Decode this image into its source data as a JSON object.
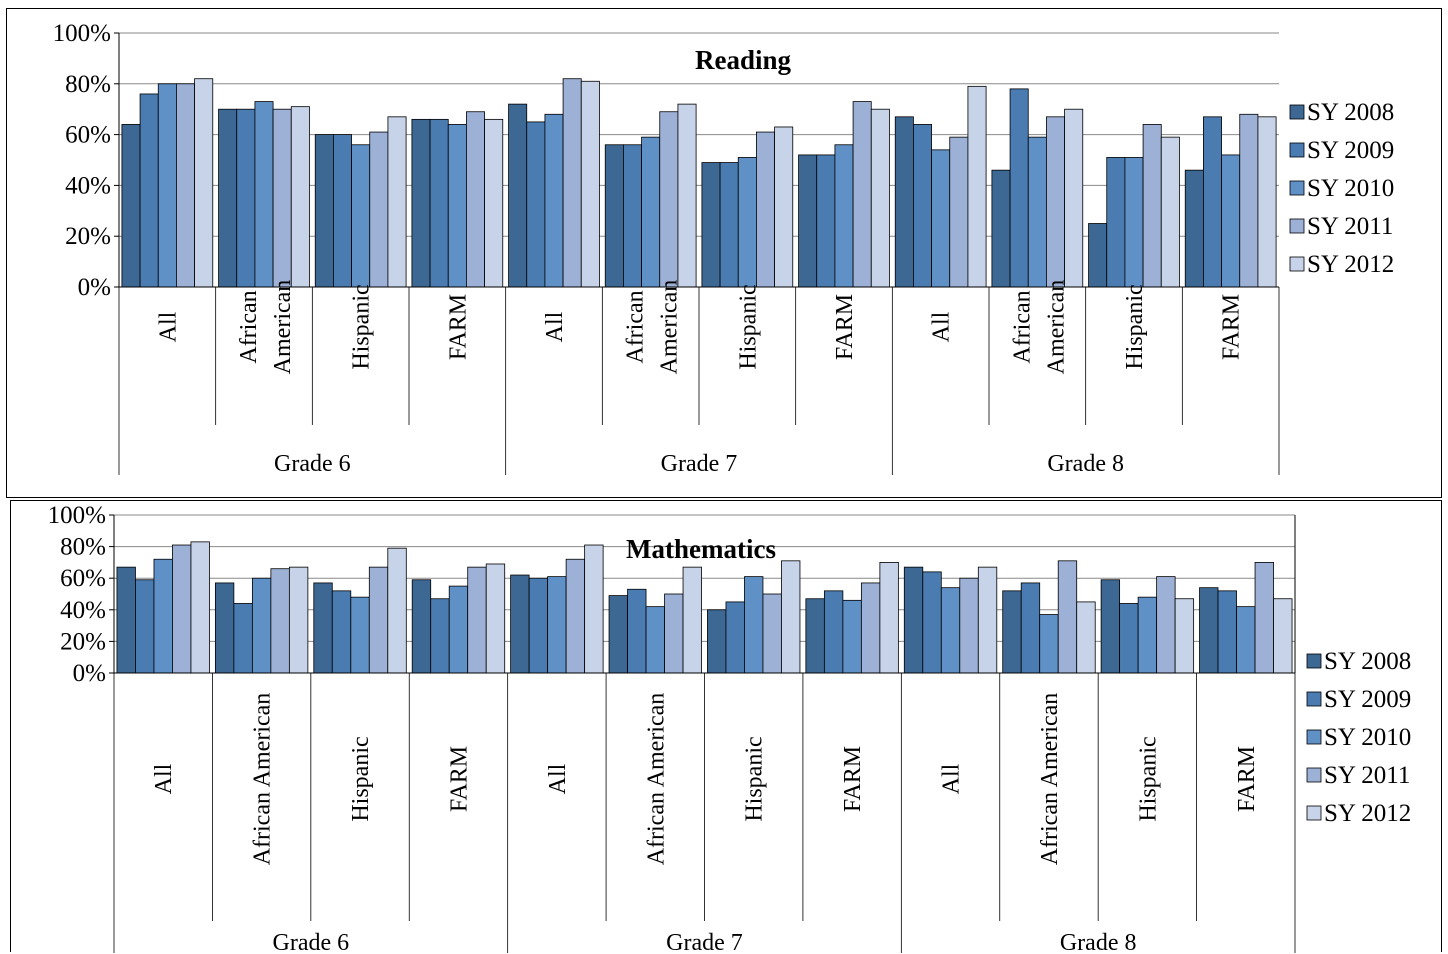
{
  "chart_data": [
    {
      "type": "bar",
      "title": "Reading",
      "ylim": [
        0,
        100
      ],
      "yticks": [
        "0%",
        "20%",
        "40%",
        "60%",
        "80%",
        "100%"
      ],
      "grid": true,
      "legend_position": "right",
      "groups": [
        {
          "label": "Grade 6",
          "categories": [
            "All",
            "African American",
            "Hispanic",
            "FARM"
          ]
        },
        {
          "label": "Grade 7",
          "categories": [
            "All",
            "African American",
            "Hispanic",
            "FARM"
          ]
        },
        {
          "label": "Grade 8",
          "categories": [
            "All",
            "African American",
            "Hispanic",
            "FARM"
          ]
        }
      ],
      "category_lines": [
        [
          "All"
        ],
        [
          "African",
          "American"
        ],
        [
          "Hispanic"
        ],
        [
          "FARM"
        ]
      ],
      "series": [
        {
          "name": "SY 2008",
          "color": "#3d6894",
          "values": [
            64,
            70,
            60,
            66,
            72,
            56,
            49,
            52,
            67,
            46,
            25,
            46
          ]
        },
        {
          "name": "SY 2009",
          "color": "#4a7cb2",
          "values": [
            76,
            70,
            60,
            66,
            65,
            56,
            49,
            52,
            64,
            78,
            51,
            67
          ]
        },
        {
          "name": "SY 2010",
          "color": "#5f90c6",
          "values": [
            80,
            73,
            56,
            64,
            68,
            59,
            51,
            56,
            54,
            59,
            51,
            52
          ]
        },
        {
          "name": "SY 2011",
          "color": "#9db0d6",
          "values": [
            80,
            70,
            61,
            69,
            82,
            69,
            61,
            73,
            59,
            67,
            64,
            68
          ]
        },
        {
          "name": "SY 2012",
          "color": "#c7d3e8",
          "values": [
            82,
            71,
            67,
            66,
            81,
            72,
            63,
            70,
            79,
            70,
            59,
            67
          ]
        }
      ]
    },
    {
      "type": "bar",
      "title": "Mathematics",
      "ylim": [
        0,
        100
      ],
      "yticks": [
        "0%",
        "20%",
        "40%",
        "60%",
        "80%",
        "100%"
      ],
      "grid": true,
      "legend_position": "right",
      "groups": [
        {
          "label": "Grade 6",
          "categories": [
            "All",
            "African American",
            "Hispanic",
            "FARM"
          ]
        },
        {
          "label": "Grade 7",
          "categories": [
            "All",
            "African American",
            "Hispanic",
            "FARM"
          ]
        },
        {
          "label": "Grade 8",
          "categories": [
            "All",
            "African American",
            "Hispanic",
            "FARM"
          ]
        }
      ],
      "category_lines": [
        [
          "All"
        ],
        [
          "African American"
        ],
        [
          "Hispanic"
        ],
        [
          "FARM"
        ]
      ],
      "series": [
        {
          "name": "SY 2008",
          "color": "#3d6894",
          "values": [
            67,
            57,
            57,
            59,
            62,
            49,
            40,
            47,
            67,
            52,
            59,
            54
          ]
        },
        {
          "name": "SY 2009",
          "color": "#4a7cb2",
          "values": [
            59,
            44,
            52,
            47,
            60,
            53,
            45,
            52,
            64,
            57,
            44,
            52
          ]
        },
        {
          "name": "SY 2010",
          "color": "#5f90c6",
          "values": [
            72,
            60,
            48,
            55,
            61,
            42,
            61,
            46,
            54,
            37,
            48,
            42
          ]
        },
        {
          "name": "SY 2011",
          "color": "#9db0d6",
          "values": [
            81,
            66,
            67,
            67,
            72,
            50,
            50,
            57,
            60,
            71,
            61,
            70
          ]
        },
        {
          "name": "SY 2012",
          "color": "#c7d3e8",
          "values": [
            83,
            67,
            79,
            69,
            81,
            67,
            71,
            70,
            67,
            45,
            47,
            47
          ]
        }
      ]
    }
  ]
}
